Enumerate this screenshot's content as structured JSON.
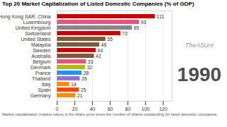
{
  "chart_data": {
    "type": "bar",
    "orientation": "horizontal",
    "title": "Top 20 Market Capitalization of Listed Domestic Companies (% of GDP)",
    "subtitle": "Market capitalization (market value) is the share price times the number of shares outstanding for listed domestic companies.",
    "annotations": [
      "1990",
      "TheASure"
    ],
    "categories": [
      "Hong Kong SAR, China",
      "Luxembourg",
      "United Kingdom",
      "Switzerland",
      "United States",
      "Malaysia",
      "Sweden",
      "Australia",
      "Belgium",
      "Denmark",
      "France",
      "Thailand",
      "Italy",
      "Spain",
      "Germany"
    ],
    "values": [
      111,
      93,
      85,
      72,
      55,
      48,
      44,
      42,
      33,
      32,
      28,
      26,
      14,
      25,
      21
    ],
    "colors": [
      "#cc0000",
      "#e75480",
      "#888888",
      "#cc0000",
      "#7B5B3A",
      "#7B5B3A",
      "#cc0000",
      "#7B5B3A",
      "#e75480",
      "#b8b800",
      "#1e90ff",
      "#9370DB",
      "#ff8c00",
      "#ff4500",
      "#ff8c00"
    ],
    "xlim": [
      0,
      130
    ],
    "xticks": [
      0,
      20,
      40,
      60,
      80,
      100,
      120
    ],
    "grid": true,
    "data_labels": true
  }
}
